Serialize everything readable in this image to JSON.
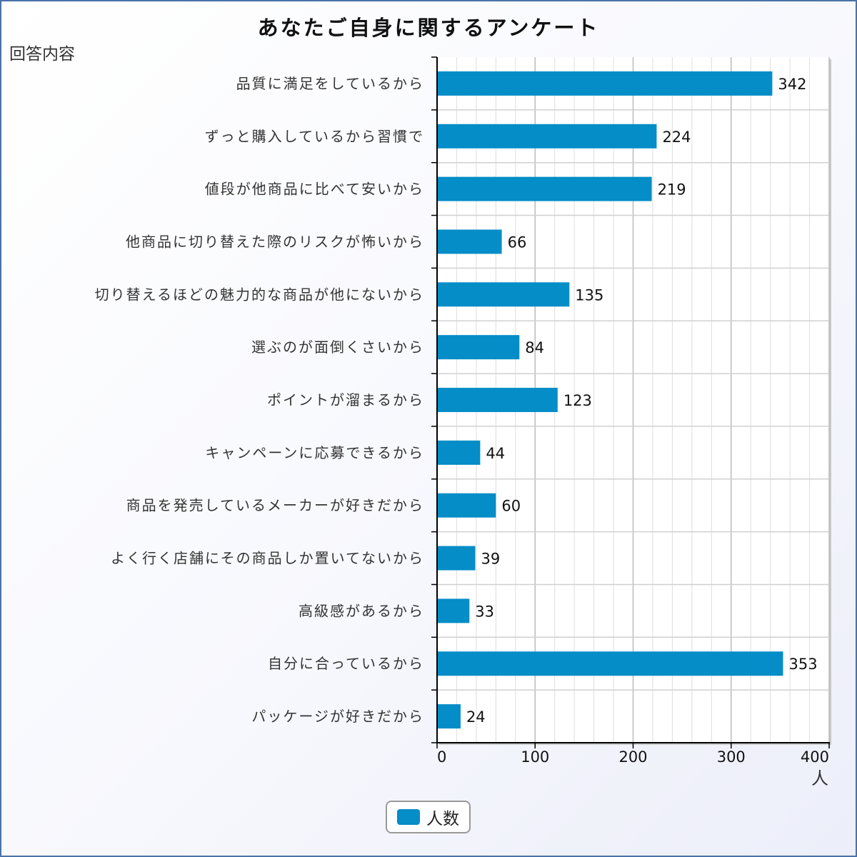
{
  "chart_data": {
    "type": "bar",
    "orientation": "horizontal",
    "title": "あなたご自身に関するアンケート",
    "ylabel": "回答内容",
    "xlabel": "人",
    "categories": [
      "品質に満足をしているから",
      "ずっと購入しているから習慣で",
      "値段が他商品に比べて安いから",
      "他商品に切り替えた際のリスクが怖いから",
      "切り替えるほどの魅力的な商品が他にないから",
      "選ぶのが面倒くさいから",
      "ポイントが溜まるから",
      "キャンペーンに応募できるから",
      "商品を発売しているメーカーが好きだから",
      "よく行く店舗にその商品しか置いてないから",
      "高級感があるから",
      "自分に合っているから",
      "パッケージが好きだから"
    ],
    "series": [
      {
        "name": "人数",
        "color": "#058dc7",
        "values": [
          342,
          224,
          219,
          66,
          135,
          84,
          123,
          44,
          60,
          39,
          33,
          353,
          24
        ]
      }
    ],
    "xlim": [
      0,
      400
    ],
    "xticks": [
      0,
      100,
      200,
      300,
      400
    ],
    "grid": true,
    "data_labels": true,
    "legend_position": "bottom-center"
  }
}
